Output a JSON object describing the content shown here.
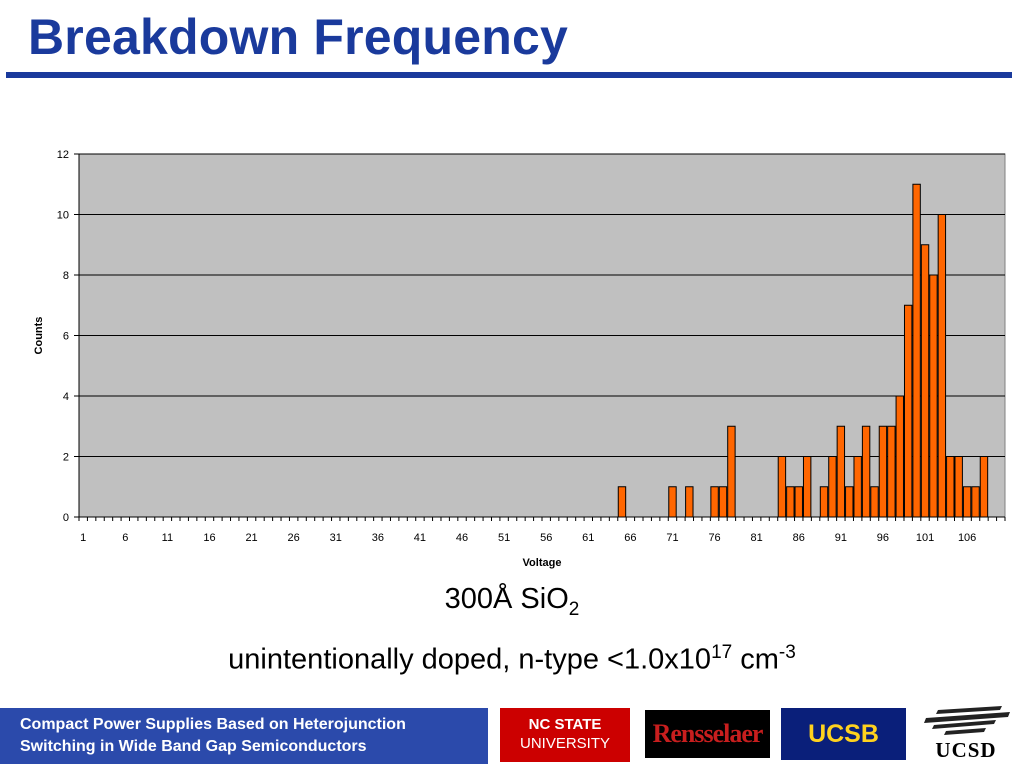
{
  "slide": {
    "title": "Breakdown Frequency",
    "caption_main": "300Å SiO",
    "caption_main_sub": "2",
    "caption_doping": "unintentionally doped, n-type <1.0x10",
    "caption_doping_sup": "17",
    "caption_doping_unit": " cm",
    "caption_doping_unit_sup": "-3"
  },
  "footer": {
    "line1": "Compact Power Supplies Based on Heterojunction",
    "line2": "Switching in Wide Band Gap Semiconductors",
    "logos": {
      "ncstate_line1": "NC STATE",
      "ncstate_line2": "UNIVERSITY",
      "rensselaer": "Rensselaer",
      "ucsb": "UCSB",
      "ucsd": "UCSD"
    }
  },
  "colors": {
    "title": "#1a3a9c",
    "bar_fill": "#ff6600",
    "bar_stroke": "#000000",
    "plot_bg": "#c0c0c0",
    "footer_bg": "#2b4aab"
  },
  "chart_data": {
    "type": "bar",
    "xlabel": "Voltage",
    "ylabel": "Counts",
    "ylim": [
      0,
      12
    ],
    "yticks": [
      0,
      2,
      4,
      6,
      8,
      10,
      12
    ],
    "xlim": [
      1,
      111
    ],
    "xticks": [
      1,
      6,
      11,
      16,
      21,
      26,
      31,
      36,
      41,
      46,
      51,
      56,
      61,
      66,
      71,
      76,
      81,
      86,
      91,
      96,
      101,
      106
    ],
    "grid": "horizontal",
    "legend": "none",
    "points": [
      [
        65,
        1
      ],
      [
        71,
        1
      ],
      [
        73,
        1
      ],
      [
        76,
        1
      ],
      [
        77,
        1
      ],
      [
        78,
        3
      ],
      [
        84,
        2
      ],
      [
        85,
        1
      ],
      [
        86,
        1
      ],
      [
        87,
        2
      ],
      [
        89,
        1
      ],
      [
        90,
        2
      ],
      [
        91,
        3
      ],
      [
        92,
        1
      ],
      [
        93,
        2
      ],
      [
        94,
        3
      ],
      [
        95,
        1
      ],
      [
        96,
        3
      ],
      [
        97,
        3
      ],
      [
        98,
        4
      ],
      [
        99,
        7
      ],
      [
        100,
        11
      ],
      [
        101,
        9
      ],
      [
        102,
        8
      ],
      [
        103,
        10
      ],
      [
        104,
        2
      ],
      [
        105,
        2
      ],
      [
        106,
        1
      ],
      [
        107,
        1
      ],
      [
        108,
        2
      ]
    ]
  }
}
